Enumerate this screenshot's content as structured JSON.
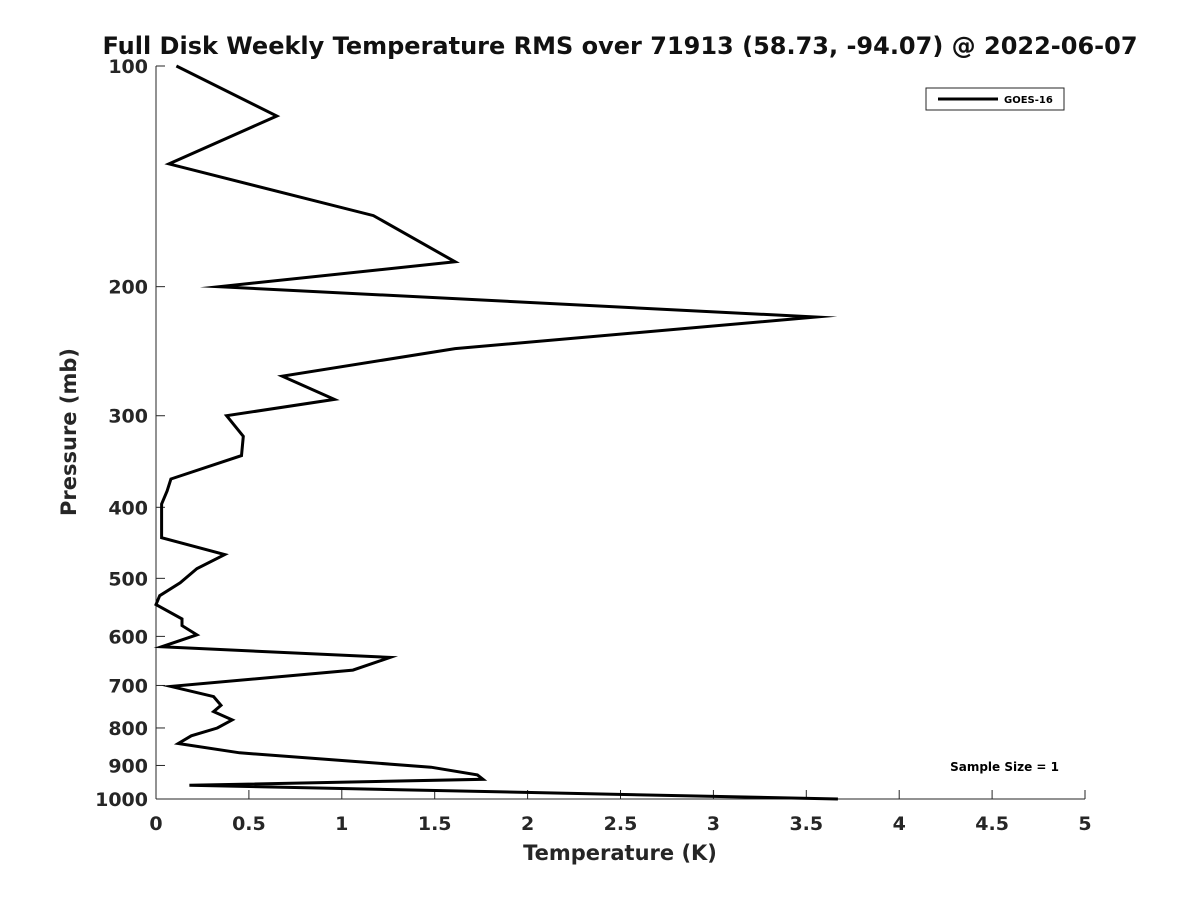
{
  "chart_data": {
    "type": "line",
    "title": "Full Disk Weekly Temperature RMS over 71913 (58.73, -94.07) @ 2022-06-07",
    "xlabel": "Temperature (K)",
    "ylabel": "Pressure (mb)",
    "xlim": [
      0,
      5
    ],
    "ylim": [
      100,
      1000
    ],
    "y_scale": "log",
    "y_reversed": true,
    "x_ticks": [
      "0",
      "0.5",
      "1",
      "1.5",
      "2",
      "2.5",
      "3",
      "3.5",
      "4",
      "4.5",
      "5"
    ],
    "y_ticks": [
      "100",
      "200",
      "300",
      "400",
      "500",
      "600",
      "700",
      "800",
      "900",
      "1000"
    ],
    "grid": false,
    "legend_position": "top-right",
    "annotation": "Sample Size = 1",
    "series": [
      {
        "name": "GOES-16",
        "color": "#000000",
        "x": [
          0.11,
          0.65,
          0.07,
          1.17,
          1.61,
          0.34,
          3.55,
          1.61,
          0.68,
          0.96,
          0.38,
          0.47,
          0.46,
          0.08,
          0.06,
          0.03,
          0.03,
          0.03,
          0.37,
          0.22,
          0.13,
          0.02,
          0.0,
          0.14,
          0.14,
          0.22,
          0.03,
          1.26,
          1.06,
          0.08,
          0.31,
          0.35,
          0.31,
          0.41,
          0.33,
          0.19,
          0.12,
          0.45,
          1.48,
          1.73,
          1.76,
          0.18,
          3.67
        ],
        "y": [
          100,
          117,
          136,
          160,
          185,
          200,
          220,
          243,
          265,
          285,
          300,
          320,
          340,
          366,
          380,
          396,
          410,
          440,
          464,
          485,
          507,
          528,
          543,
          568,
          580,
          597,
          620,
          641,
          667,
          702,
          725,
          745,
          760,
          780,
          800,
          820,
          840,
          865,
          905,
          927,
          940,
          958,
          1000
        ]
      }
    ]
  }
}
